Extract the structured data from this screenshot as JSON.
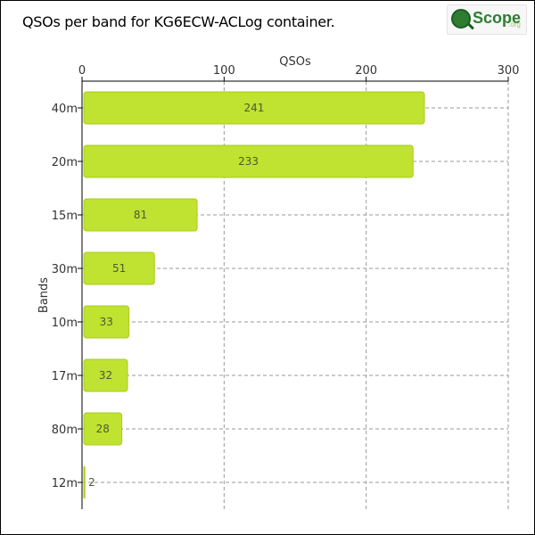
{
  "title": "QSOs per band for KG6ECW-ACLog container.",
  "logo": {
    "word": "Scope",
    "suffix": ".org",
    "icon": "magnifier-q-icon"
  },
  "colors": {
    "bar_fill": "#c0e230",
    "bar_stroke": "#a9cc20",
    "grid": "#9a9a9a",
    "axis": "#000000"
  },
  "chart_data": {
    "type": "bar",
    "orientation": "horizontal",
    "title": "QSOs per band for KG6ECW-ACLog container.",
    "xlabel": "QSOs",
    "ylabel": "Bands",
    "xlim": [
      0,
      300
    ],
    "x_ticks": [
      0,
      100,
      200,
      300
    ],
    "x_axis_position": "top",
    "grid": true,
    "categories": [
      "40m",
      "20m",
      "15m",
      "30m",
      "10m",
      "17m",
      "80m",
      "12m"
    ],
    "values": [
      241,
      233,
      81,
      51,
      33,
      32,
      28,
      2
    ]
  }
}
